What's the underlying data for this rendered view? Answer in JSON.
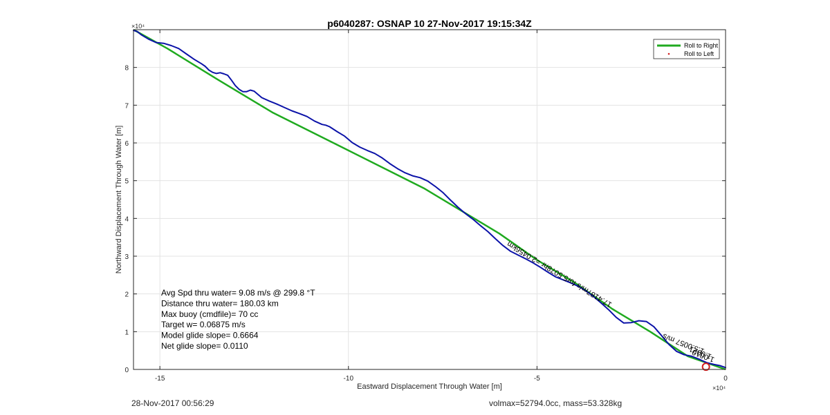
{
  "figure": {
    "footer_left": "28-Nov-2017 00:56:29",
    "footer_right": "volmax=52794.0cc, mass=53.328kg"
  },
  "chart_data": {
    "type": "line",
    "title": "p6040287: OSNAP 10 27-Nov-2017 19:15:34Z",
    "xlabel": "Eastward Displacement Through Water [m]",
    "ylabel": "Northward Displacement Through Water [m]",
    "x_exponent_label": "×10⁴",
    "y_exponent_label": "×10⁴",
    "xlim": [
      -157000,
      0
    ],
    "ylim": [
      0,
      90000
    ],
    "xticks": [
      -150000,
      -100000,
      -50000,
      0
    ],
    "xtick_labels": [
      "-15",
      "-10",
      "-5",
      "0"
    ],
    "yticks": [
      0,
      10000,
      20000,
      30000,
      40000,
      50000,
      60000,
      70000,
      80000
    ],
    "ytick_labels": [
      "0",
      "1",
      "2",
      "3",
      "4",
      "5",
      "6",
      "7",
      "8"
    ],
    "grid": true,
    "legend_position": "top-right",
    "colors": {
      "model": "#1faa1f",
      "track": "#0b12a8",
      "roll_left": "#d22020",
      "start_marker": "#d22020"
    },
    "series": [
      {
        "name": "Roll to Right",
        "style": "line",
        "x": [
          -157000,
          -148000,
          -135000,
          -120000,
          -100000,
          -80000,
          -60000,
          -50000,
          -40000,
          -30000,
          -20000,
          -10000,
          0
        ],
        "y": [
          90000,
          85000,
          77000,
          68000,
          58000,
          48000,
          36000,
          29000,
          23000,
          16000,
          10000,
          3500,
          0
        ]
      },
      {
        "name": "Roll to Left",
        "style": "marker",
        "x": [],
        "y": []
      }
    ],
    "track": {
      "x": [
        -157000,
        -156000,
        -155000,
        -153000,
        -151000,
        -149000,
        -147000,
        -145000,
        -143000,
        -141000,
        -139000,
        -138000,
        -137000,
        -136000,
        -135000,
        -134000,
        -133000,
        -132000,
        -131000,
        -130000,
        -129000,
        -128000,
        -127000,
        -126000,
        -125000,
        -123000,
        -121000,
        -119000,
        -117000,
        -115000,
        -113000,
        -111000,
        -109000,
        -107000,
        -106000,
        -105000,
        -103000,
        -101000,
        -99000,
        -97000,
        -95000,
        -93000,
        -91000,
        -89000,
        -87000,
        -85000,
        -83000,
        -81000,
        -79000,
        -77000,
        -75000,
        -73000,
        -71000,
        -69000,
        -67000,
        -65000,
        -63000,
        -61000,
        -59000,
        -57000,
        -55000,
        -53000,
        -51000,
        -49000,
        -47000,
        -45000,
        -43000,
        -41000,
        -39000,
        -37000,
        -35000,
        -33000,
        -31000,
        -29000,
        -27000,
        -25000,
        -23000,
        -21000,
        -19000,
        -17000,
        -15000,
        -13000,
        -11000,
        -9000,
        -7000,
        -5000,
        -3000,
        -1500,
        0
      ],
      "y": [
        89800,
        89500,
        88700,
        87500,
        86600,
        86400,
        85800,
        85000,
        83600,
        82200,
        81000,
        80300,
        79300,
        78700,
        78400,
        78600,
        78300,
        77900,
        76600,
        75200,
        74200,
        73600,
        73600,
        74000,
        73700,
        72000,
        71100,
        70300,
        69400,
        68500,
        67800,
        67000,
        65800,
        64900,
        64700,
        64300,
        63000,
        61800,
        60100,
        58900,
        58000,
        57200,
        56000,
        54500,
        53200,
        52100,
        51300,
        50800,
        49900,
        48500,
        46900,
        44900,
        43000,
        41300,
        39800,
        38100,
        36500,
        34600,
        32800,
        31300,
        30300,
        29300,
        28200,
        27000,
        25700,
        24500,
        23700,
        22900,
        22000,
        20800,
        19300,
        17600,
        15800,
        13800,
        12300,
        12400,
        12900,
        12700,
        11300,
        9000,
        6600,
        4800,
        3900,
        3500,
        2700,
        1800,
        1300,
        1000,
        500
      ]
    },
    "start_marker": {
      "x": -5200,
      "y": 700
    },
    "annotations": [
      {
        "text": "Avg Spd thru water=  9.08 m/s @ 299.8 °T"
      },
      {
        "text": "Distance thru water= 180.03 km"
      },
      {
        "text": "Max buoy (cmdfile)= 70 cc"
      },
      {
        "text": "Target w= 0.06875 m/s"
      },
      {
        "text": "Model glide slope= 0.6664"
      },
      {
        "text": "Net glide slope= 0.0110"
      }
    ],
    "track_labels": [
      {
        "text": "17.4187m/s for5.5078hr =2.0456km",
        "x": -30000,
        "y": 17500,
        "angle": 211
      },
      {
        "text": "1.5.0057 m/s",
        "x": -5500,
        "y": 5300,
        "angle": 201
      },
      {
        "text": "1.0021",
        "x": -3600,
        "y": 3900,
        "angle": 201
      },
      {
        "text": "1.0010",
        "x": -2800,
        "y": 3100,
        "angle": 201
      }
    ]
  }
}
